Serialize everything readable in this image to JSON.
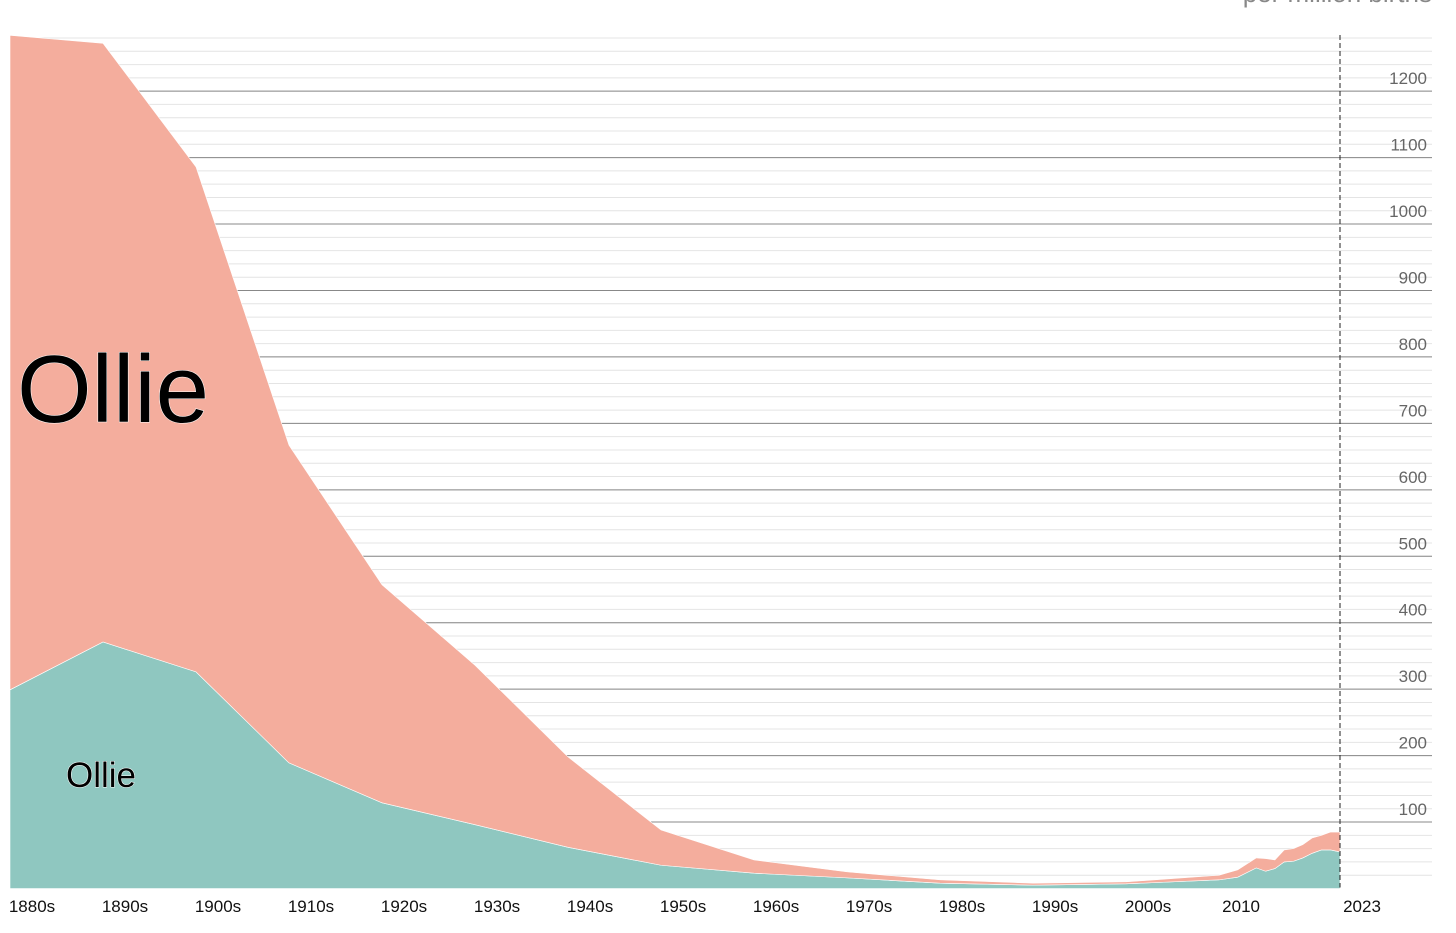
{
  "chart_data": {
    "type": "stacked_area",
    "ylabel": "per million births",
    "x": [
      1880,
      1890,
      1900,
      1910,
      1920,
      1930,
      1940,
      1950,
      1960,
      1970,
      1980,
      1990,
      2000,
      2010,
      2012,
      2014,
      2015,
      2016,
      2017,
      2018,
      2019,
      2020,
      2021,
      2022,
      2023
    ],
    "series": [
      {
        "name": "Ollie",
        "color": "#8fc7c0",
        "values": [
          299,
          371,
          326,
          189,
          129,
          96,
          62,
          35,
          23,
          16,
          8,
          5,
          7,
          13,
          17,
          31,
          26,
          30,
          40,
          41,
          46,
          53,
          58,
          58,
          55
        ]
      },
      {
        "name": "Ollie",
        "color": "#f4ad9d",
        "values": [
          985,
          901,
          760,
          478,
          328,
          240,
          136,
          53,
          20,
          9,
          5,
          3,
          3,
          7,
          11,
          15,
          19,
          13,
          18,
          19,
          20,
          23,
          22,
          27,
          30
        ]
      }
    ],
    "xlim": [
      1880,
      2023
    ],
    "xticks": [
      {
        "value": 1880,
        "label": "1880s"
      },
      {
        "value": 1890,
        "label": "1890s"
      },
      {
        "value": 1900,
        "label": "1900s"
      },
      {
        "value": 1910,
        "label": "1910s"
      },
      {
        "value": 1920,
        "label": "1920s"
      },
      {
        "value": 1930,
        "label": "1930s"
      },
      {
        "value": 1940,
        "label": "1940s"
      },
      {
        "value": 1950,
        "label": "1950s"
      },
      {
        "value": 1960,
        "label": "1960s"
      },
      {
        "value": 1970,
        "label": "1970s"
      },
      {
        "value": 1980,
        "label": "1980s"
      },
      {
        "value": 1990,
        "label": "1990s"
      },
      {
        "value": 2000,
        "label": "2000s"
      },
      2010,
      2023
    ],
    "ylim": [
      0,
      1300
    ],
    "yticks": [
      100,
      200,
      300,
      400,
      500,
      600,
      700,
      800,
      900,
      1000,
      1100,
      1200
    ],
    "grid": true
  }
}
